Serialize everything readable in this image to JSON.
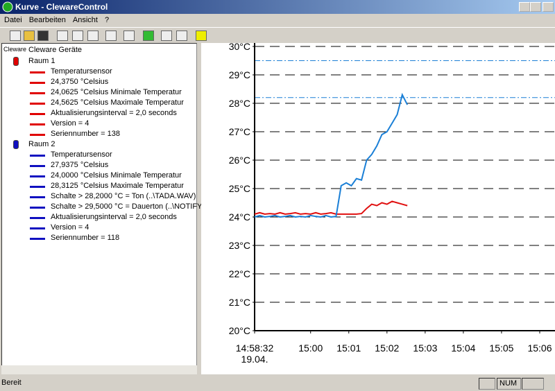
{
  "window": {
    "title": "Kurve - ClewareControl",
    "menu": [
      "Datei",
      "Bearbeiten",
      "Ansicht",
      "?"
    ],
    "status": "Bereit",
    "status_indicator": "NUM"
  },
  "tree": {
    "root_icon_label": "Cleware",
    "root": "Cleware Geräte",
    "groups": [
      {
        "name": "Raum 1",
        "color": "#e00000",
        "items": [
          "Temperatursensor",
          "24,3750 °Celsius",
          "24,0625 °Celsius Minimale Temperatur",
          "24,5625 °Celsius Maximale Temperatur",
          "Aktualisierungsinterval = 2,0 seconds",
          "Version = 4",
          "Seriennumber = 138"
        ]
      },
      {
        "name": "Raum 2",
        "color": "#1010c0",
        "items": [
          "Temperatursensor",
          "27,9375 °Celsius",
          "24,0000 °Celsius Minimale Temperatur",
          "28,3125 °Celsius Maximale Temperatur",
          "Schalte > 28,2000 °C = Ton (..\\TADA.WAV)",
          "Schalte > 29,5000 °C = Dauerton (..\\NOTIFY.WAV)",
          "Aktualisierungsinterval = 2,0 seconds",
          "Version = 4",
          "Seriennumber = 118"
        ]
      }
    ]
  },
  "chart_data": {
    "type": "line",
    "x": [
      53912,
      53920,
      53928,
      53936,
      53944,
      53952,
      53960,
      53968,
      53976,
      53984,
      53992,
      54000,
      54008,
      54016,
      54024,
      54032,
      54040,
      54048,
      54056,
      54064,
      54072,
      54080,
      54088,
      54096,
      54104,
      54112,
      54120,
      54128,
      54136,
      54144,
      54152
    ],
    "series": [
      {
        "name": "Raum 1",
        "color": "#e01010",
        "values": [
          24.1,
          24.15,
          24.1,
          24.12,
          24.1,
          24.15,
          24.1,
          24.12,
          24.15,
          24.1,
          24.12,
          24.1,
          24.15,
          24.1,
          24.12,
          24.15,
          24.1,
          24.1,
          24.1,
          24.1,
          24.1,
          24.12,
          24.3,
          24.45,
          24.4,
          24.5,
          24.45,
          24.55,
          24.5,
          24.45,
          24.4
        ]
      },
      {
        "name": "Raum 2",
        "color": "#1a7fd6",
        "values": [
          24.0,
          24.05,
          24.0,
          24.02,
          24.05,
          24.0,
          24.02,
          24.05,
          24.0,
          24.02,
          24.0,
          24.05,
          24.02,
          24.0,
          24.05,
          24.0,
          24.02,
          25.1,
          25.2,
          25.1,
          25.35,
          25.3,
          26.0,
          26.2,
          26.5,
          26.9,
          27.0,
          27.3,
          27.6,
          28.3,
          27.95
        ]
      }
    ],
    "xlim": [
      53912,
      54384
    ],
    "xticks": [
      {
        "value": 53912,
        "label": "14:58:32"
      },
      {
        "value": 54000,
        "label": "15:00"
      },
      {
        "value": 54060,
        "label": "15:01"
      },
      {
        "value": 54120,
        "label": "15:02"
      },
      {
        "value": 54180,
        "label": "15:03"
      },
      {
        "value": 54240,
        "label": "15:04"
      },
      {
        "value": 54300,
        "label": "15:05"
      },
      {
        "value": 54360,
        "label": "15:06"
      }
    ],
    "date_label": "19.04.",
    "ylim": [
      20,
      30
    ],
    "yticks": [
      {
        "value": 20,
        "label": "20°C"
      },
      {
        "value": 21,
        "label": "21°C"
      },
      {
        "value": 22,
        "label": "22°C"
      },
      {
        "value": 23,
        "label": "23°C"
      },
      {
        "value": 24,
        "label": "24°C"
      },
      {
        "value": 25,
        "label": "25°C"
      },
      {
        "value": 26,
        "label": "26°C"
      },
      {
        "value": 27,
        "label": "27°C"
      },
      {
        "value": 28,
        "label": "28°C"
      },
      {
        "value": 29,
        "label": "29°C"
      },
      {
        "value": 30,
        "label": "30°C"
      }
    ],
    "grid": true,
    "thresholds": [
      28.2,
      29.5
    ],
    "threshold_color": "#1a7fd6"
  }
}
